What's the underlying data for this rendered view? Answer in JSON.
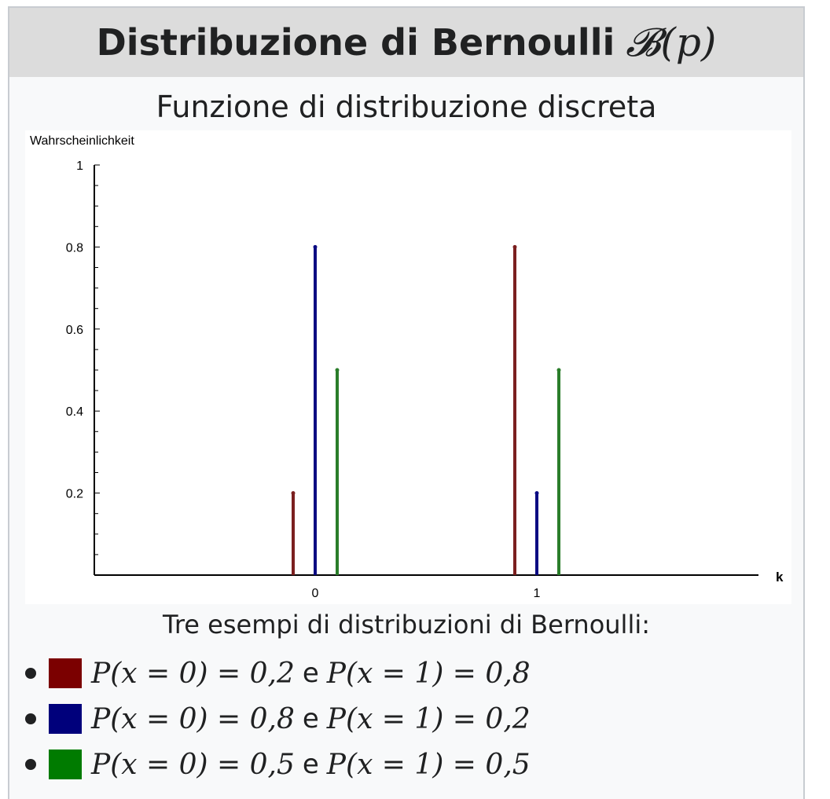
{
  "infobox": {
    "title": "Distribuzione di Bernoulli",
    "title_math": "𝓑(p)",
    "subtitle": "Funzione di distribuzione discreta",
    "caption": "Tre esempi di distribuzioni di Bernoulli:",
    "legend": [
      {
        "color": "#7b0000",
        "left": "P(x = 0) = 0,2",
        "joiner": "e",
        "right": "P(x = 1) = 0,8"
      },
      {
        "color": "#00007b",
        "left": "P(x = 0) = 0,8",
        "joiner": "e",
        "right": "P(x = 1) = 0,2"
      },
      {
        "color": "#007b00",
        "left": "P(x = 0) = 0,5",
        "joiner": "e",
        "right": "P(x = 1) = 0,5"
      }
    ]
  },
  "chart_data": {
    "type": "bar",
    "ylabel": "Wahrscheinlichkeit",
    "xlabel": "k",
    "categories": [
      "0",
      "1"
    ],
    "yticks": [
      "0.2",
      "0.4",
      "0.6",
      "0.8",
      "1"
    ],
    "ylim": [
      0,
      1
    ],
    "series": [
      {
        "color": "#7b1f1f",
        "values": [
          0.2,
          0.8
        ]
      },
      {
        "color": "#0b0b82",
        "values": [
          0.8,
          0.2
        ]
      },
      {
        "color": "#2a7d2a",
        "values": [
          0.5,
          0.5
        ]
      }
    ]
  }
}
